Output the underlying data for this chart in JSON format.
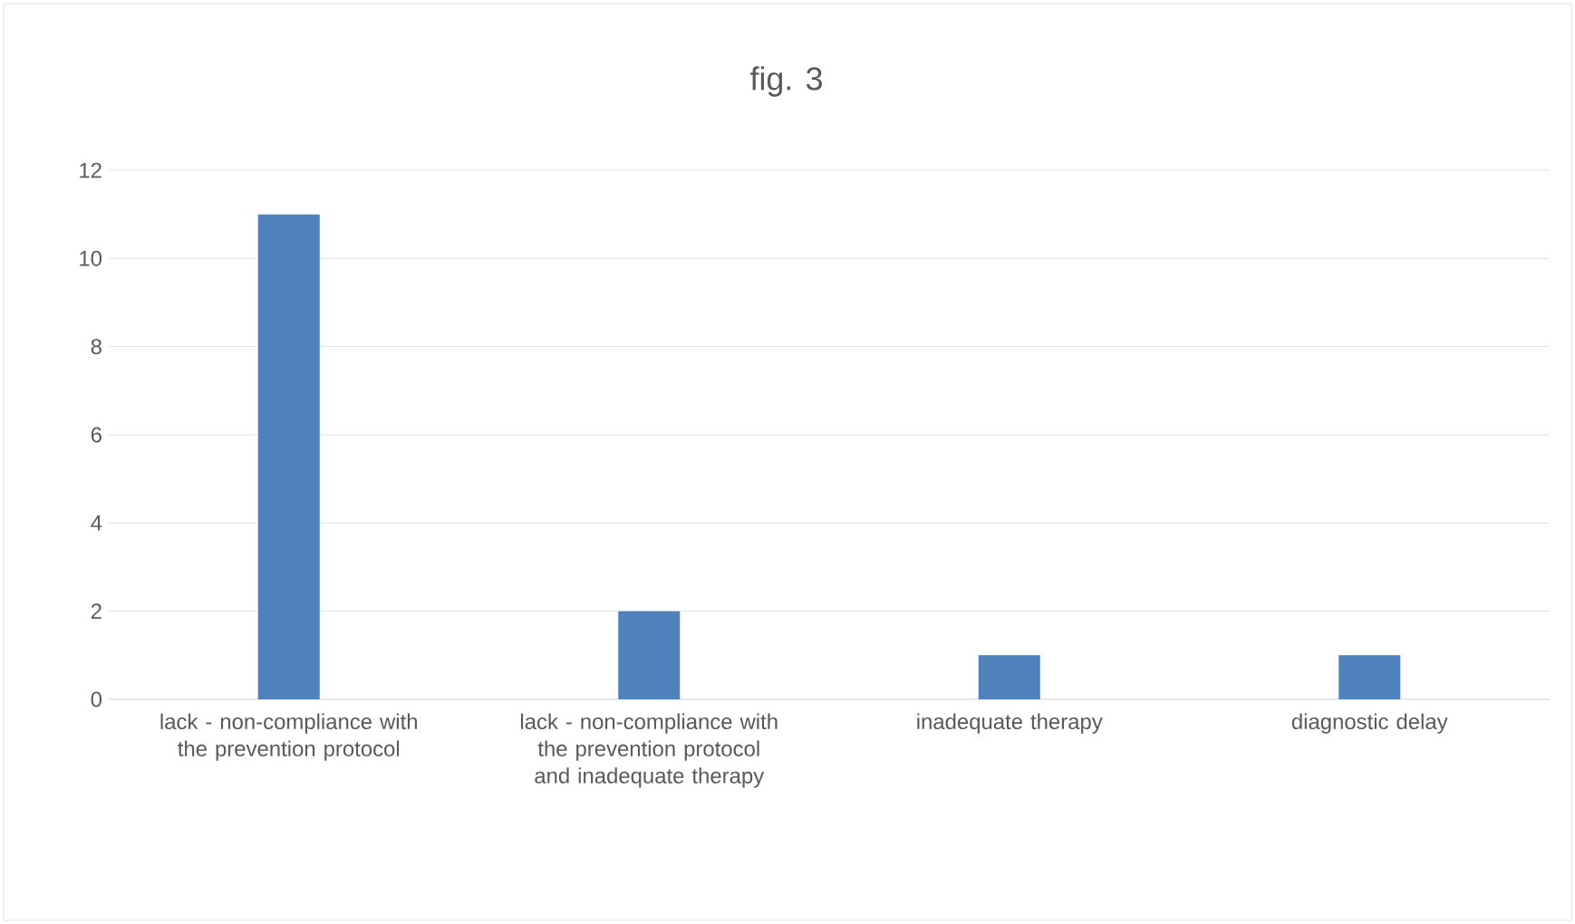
{
  "chart_data": {
    "type": "bar",
    "title": "fig. 3",
    "categories": [
      "lack - non-compliance with the prevention protocol",
      "lack - non-compliance with the prevention protocol and inadequate therapy",
      "inadequate therapy",
      "diagnostic delay"
    ],
    "values": [
      11,
      2,
      1,
      1
    ],
    "color": "#4f81bd",
    "ylim": [
      0,
      12
    ],
    "yticks": [
      0,
      2,
      4,
      6,
      8,
      10,
      12
    ],
    "grid": "y"
  }
}
